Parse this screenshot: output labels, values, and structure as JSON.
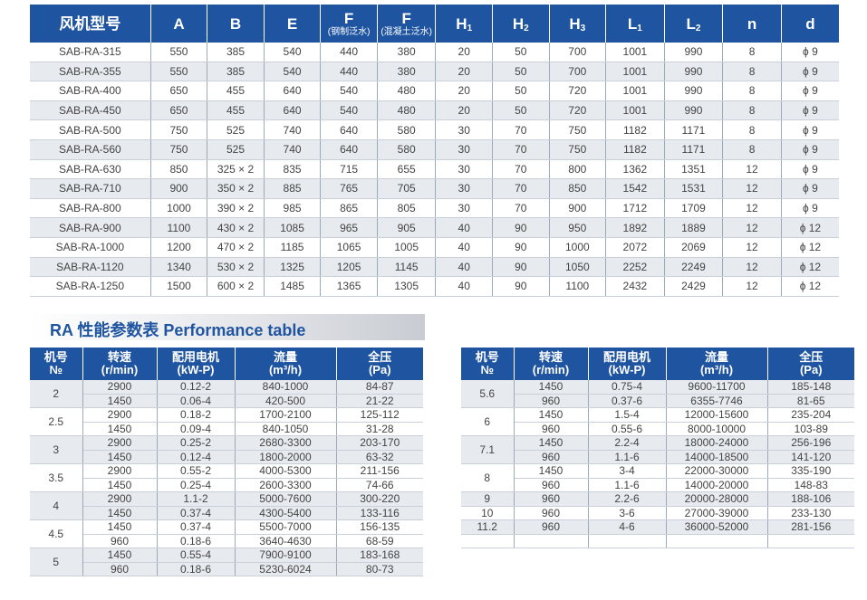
{
  "dimension_table": {
    "headers": [
      {
        "main": "风机型号",
        "sub": ""
      },
      {
        "main": "A",
        "sub": ""
      },
      {
        "main": "B",
        "sub": ""
      },
      {
        "main": "E",
        "sub": ""
      },
      {
        "main": "F",
        "sub": "(钢制泛水)"
      },
      {
        "main": "F",
        "sub": "(混凝土泛水)"
      },
      {
        "main": "H",
        "subscript": "1"
      },
      {
        "main": "H",
        "subscript": "2"
      },
      {
        "main": "H",
        "subscript": "3"
      },
      {
        "main": "L",
        "subscript": "1"
      },
      {
        "main": "L",
        "subscript": "2"
      },
      {
        "main": "n",
        "sub": ""
      },
      {
        "main": "d",
        "sub": ""
      }
    ],
    "rows": [
      [
        "SAB-RA-315",
        "550",
        "385",
        "540",
        "440",
        "380",
        "20",
        "50",
        "700",
        "1001",
        "990",
        "8",
        "ϕ 9"
      ],
      [
        "SAB-RA-355",
        "550",
        "385",
        "540",
        "440",
        "380",
        "20",
        "50",
        "700",
        "1001",
        "990",
        "8",
        "ϕ 9"
      ],
      [
        "SAB-RA-400",
        "650",
        "455",
        "640",
        "540",
        "480",
        "20",
        "50",
        "720",
        "1001",
        "990",
        "8",
        "ϕ 9"
      ],
      [
        "SAB-RA-450",
        "650",
        "455",
        "640",
        "540",
        "480",
        "20",
        "50",
        "720",
        "1001",
        "990",
        "8",
        "ϕ 9"
      ],
      [
        "SAB-RA-500",
        "750",
        "525",
        "740",
        "640",
        "580",
        "30",
        "70",
        "750",
        "1182",
        "1171",
        "8",
        "ϕ 9"
      ],
      [
        "SAB-RA-560",
        "750",
        "525",
        "740",
        "640",
        "580",
        "30",
        "70",
        "750",
        "1182",
        "1171",
        "8",
        "ϕ 9"
      ],
      [
        "SAB-RA-630",
        "850",
        "325 × 2",
        "835",
        "715",
        "655",
        "30",
        "70",
        "800",
        "1362",
        "1351",
        "12",
        "ϕ 9"
      ],
      [
        "SAB-RA-710",
        "900",
        "350 × 2",
        "885",
        "765",
        "705",
        "30",
        "70",
        "850",
        "1542",
        "1531",
        "12",
        "ϕ 9"
      ],
      [
        "SAB-RA-800",
        "1000",
        "390 × 2",
        "985",
        "865",
        "805",
        "30",
        "70",
        "900",
        "1712",
        "1709",
        "12",
        "ϕ 9"
      ],
      [
        "SAB-RA-900",
        "1100",
        "430 × 2",
        "1085",
        "965",
        "905",
        "40",
        "90",
        "950",
        "1892",
        "1889",
        "12",
        "ϕ 12"
      ],
      [
        "SAB-RA-1000",
        "1200",
        "470 × 2",
        "1185",
        "1065",
        "1005",
        "40",
        "90",
        "1000",
        "2072",
        "2069",
        "12",
        "ϕ 12"
      ],
      [
        "SAB-RA-1120",
        "1340",
        "530 × 2",
        "1325",
        "1205",
        "1145",
        "40",
        "90",
        "1050",
        "2252",
        "2249",
        "12",
        "ϕ 12"
      ],
      [
        "SAB-RA-1250",
        "1500",
        "600 × 2",
        "1485",
        "1365",
        "1305",
        "40",
        "90",
        "1100",
        "2432",
        "2429",
        "12",
        "ϕ 12"
      ]
    ]
  },
  "section_title": "RA 性能参数表  Performance table",
  "perf_headers": [
    {
      "l1": "机号",
      "l2": "№"
    },
    {
      "l1": "转速",
      "l2": "(r/min)"
    },
    {
      "l1": "配用电机",
      "l2": "(kW-P)"
    },
    {
      "l1": "流量",
      "l2": "(m³/h)"
    },
    {
      "l1": "全压",
      "l2": "(Pa)"
    }
  ],
  "perf_left": [
    {
      "no": "2",
      "rows": [
        [
          "2900",
          "0.12-2",
          "840-1000",
          "84-87"
        ],
        [
          "1450",
          "0.06-4",
          "420-500",
          "21-22"
        ]
      ]
    },
    {
      "no": "2.5",
      "rows": [
        [
          "2900",
          "0.18-2",
          "1700-2100",
          "125-112"
        ],
        [
          "1450",
          "0.09-4",
          "840-1050",
          "31-28"
        ]
      ]
    },
    {
      "no": "3",
      "rows": [
        [
          "2900",
          "0.25-2",
          "2680-3300",
          "203-170"
        ],
        [
          "1450",
          "0.12-4",
          "1800-2000",
          "63-32"
        ]
      ]
    },
    {
      "no": "3.5",
      "rows": [
        [
          "2900",
          "0.55-2",
          "4000-5300",
          "211-156"
        ],
        [
          "1450",
          "0.25-4",
          "2600-3300",
          "74-66"
        ]
      ]
    },
    {
      "no": "4",
      "rows": [
        [
          "2900",
          "1.1-2",
          "5000-7600",
          "300-220"
        ],
        [
          "1450",
          "0.37-4",
          "4300-5400",
          "133-116"
        ]
      ]
    },
    {
      "no": "4.5",
      "rows": [
        [
          "1450",
          "0.37-4",
          "5500-7000",
          "156-135"
        ],
        [
          "960",
          "0.18-6",
          "3640-4630",
          "68-59"
        ]
      ]
    },
    {
      "no": "5",
      "rows": [
        [
          "1450",
          "0.55-4",
          "7900-9100",
          "183-168"
        ],
        [
          "960",
          "0.18-6",
          "5230-6024",
          "80-73"
        ]
      ]
    }
  ],
  "perf_right": [
    {
      "no": "5.6",
      "rows": [
        [
          "1450",
          "0.75-4",
          "9600-11700",
          "185-148"
        ],
        [
          "960",
          "0.37-6",
          "6355-7746",
          "81-65"
        ]
      ]
    },
    {
      "no": "6",
      "rows": [
        [
          "1450",
          "1.5-4",
          "12000-15600",
          "235-204"
        ],
        [
          "960",
          "0.55-6",
          "8000-10000",
          "103-89"
        ]
      ]
    },
    {
      "no": "7.1",
      "rows": [
        [
          "1450",
          "2.2-4",
          "18000-24000",
          "256-196"
        ],
        [
          "960",
          "1.1-6",
          "14000-18500",
          "141-120"
        ]
      ]
    },
    {
      "no": "8",
      "rows": [
        [
          "1450",
          "3-4",
          "22000-30000",
          "335-190"
        ],
        [
          "960",
          "1.1-6",
          "14000-20000",
          "148-83"
        ]
      ]
    },
    {
      "no": "9",
      "rows": [
        [
          "960",
          "2.2-6",
          "20000-28000",
          "188-106"
        ]
      ]
    },
    {
      "no": "10",
      "rows": [
        [
          "960",
          "3-6",
          "27000-39000",
          "233-130"
        ]
      ]
    },
    {
      "no": "11.2",
      "rows": [
        [
          "960",
          "4-6",
          "36000-52000",
          "281-156"
        ]
      ]
    },
    {
      "no": "",
      "rows": [
        [
          "",
          "",
          "",
          ""
        ]
      ]
    }
  ]
}
